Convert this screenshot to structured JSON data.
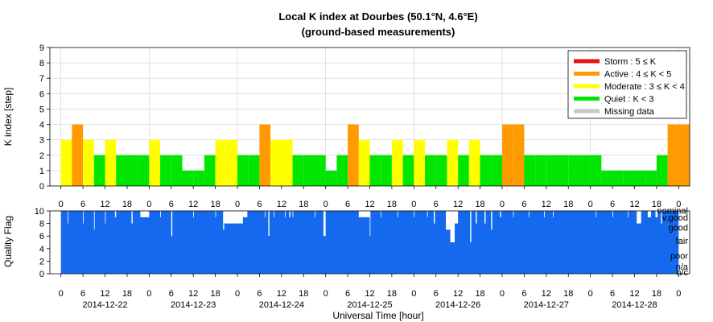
{
  "chart_data": [
    {
      "type": "bar",
      "title": "Local K index at Dourbes (50.1°N, 4.6°E)",
      "subtitle": "(ground-based measurements)",
      "ylabel": "K index [step]",
      "ylim": [
        0,
        9
      ],
      "yticks": [
        0,
        1,
        2,
        3,
        4,
        5,
        6,
        7,
        8,
        9
      ],
      "x_unit": "3-hour interval",
      "x_range": [
        -1,
        57
      ],
      "hour_ticks": [
        "0",
        "6",
        "12",
        "18",
        "0",
        "6",
        "12",
        "18",
        "0",
        "6",
        "12",
        "18",
        "0",
        "6",
        "12",
        "18",
        "0",
        "6",
        "12",
        "18",
        "0",
        "6",
        "12",
        "18",
        "0",
        "6",
        "12",
        "18",
        "0"
      ],
      "grid": true,
      "legend_position": "top-right",
      "legend": [
        {
          "label": "Storm : 5 ≤ K",
          "color": "#e81010"
        },
        {
          "label": "Active : 4 ≤ K < 5",
          "color": "#ff9a00"
        },
        {
          "label": "Moderate : 3 ≤ K < 4",
          "color": "#ffff00"
        },
        {
          "label": "Quiet : K < 3",
          "color": "#00e600"
        },
        {
          "label": "Missing data",
          "color": "#c8c8c8"
        }
      ],
      "values": [
        3,
        4,
        3,
        2,
        3,
        2,
        2,
        2,
        3,
        2,
        2,
        1,
        1,
        2,
        3,
        3,
        2,
        2,
        4,
        3,
        3,
        2,
        2,
        2,
        1,
        2,
        4,
        3,
        2,
        2,
        3,
        2,
        3,
        2,
        2,
        3,
        2,
        3,
        2,
        2,
        4,
        4,
        2,
        2,
        2,
        2,
        2,
        2,
        2,
        1,
        1,
        1,
        1,
        1,
        2,
        4,
        4
      ]
    },
    {
      "type": "bar",
      "ylabel": "Quality Flag",
      "ylim": [
        0,
        10
      ],
      "yticks": [
        0,
        2,
        4,
        6,
        8,
        10
      ],
      "xlabel": "Universal Time [hour]",
      "quality_levels": [
        "nominal",
        "v.good",
        "good",
        "fair",
        "poor",
        "n/a",
        "n/c"
      ],
      "dates": [
        "2014-12-22",
        "2014-12-23",
        "2014-12-24",
        "2014-12-25",
        "2014-12-26",
        "2014-12-27",
        "2014-12-28"
      ],
      "color": "#1469ee",
      "dips": [
        {
          "from": 0.6,
          "to": 0.65,
          "value": 8
        },
        {
          "from": 2.0,
          "to": 2.05,
          "value": 8
        },
        {
          "from": 3.0,
          "to": 3.05,
          "value": 7
        },
        {
          "from": 4.0,
          "to": 4.05,
          "value": 8
        },
        {
          "from": 4.9,
          "to": 5.0,
          "value": 9
        },
        {
          "from": 6.4,
          "to": 6.5,
          "value": 8
        },
        {
          "from": 7.2,
          "to": 8.0,
          "value": 9
        },
        {
          "from": 9.0,
          "to": 9.05,
          "value": 9
        },
        {
          "from": 10.0,
          "to": 10.1,
          "value": 6
        },
        {
          "from": 12.0,
          "to": 12.05,
          "value": 9
        },
        {
          "from": 14.0,
          "to": 14.05,
          "value": 9
        },
        {
          "from": 14.7,
          "to": 14.8,
          "value": 7
        },
        {
          "from": 14.8,
          "to": 16.5,
          "value": 8
        },
        {
          "from": 16.5,
          "to": 16.9,
          "value": 9
        },
        {
          "from": 18.5,
          "to": 18.55,
          "value": 9
        },
        {
          "from": 18.8,
          "to": 18.9,
          "value": 6
        },
        {
          "from": 19.3,
          "to": 19.35,
          "value": 9
        },
        {
          "from": 20.3,
          "to": 20.35,
          "value": 9
        },
        {
          "from": 20.7,
          "to": 20.8,
          "value": 9
        },
        {
          "from": 21.0,
          "to": 21.05,
          "value": 9
        },
        {
          "from": 23.0,
          "to": 23.05,
          "value": 9
        },
        {
          "from": 23.8,
          "to": 24.0,
          "value": 6
        },
        {
          "from": 27.0,
          "to": 28.0,
          "value": 9
        },
        {
          "from": 28.0,
          "to": 28.05,
          "value": 6
        },
        {
          "from": 29.0,
          "to": 29.05,
          "value": 9
        },
        {
          "from": 30.5,
          "to": 30.55,
          "value": 9
        },
        {
          "from": 32.0,
          "to": 32.05,
          "value": 9
        },
        {
          "from": 33.2,
          "to": 33.25,
          "value": 9
        },
        {
          "from": 33.8,
          "to": 33.9,
          "value": 8
        },
        {
          "from": 34.9,
          "to": 35.3,
          "value": 7
        },
        {
          "from": 35.3,
          "to": 35.7,
          "value": 5
        },
        {
          "from": 35.7,
          "to": 36.0,
          "value": 8
        },
        {
          "from": 37.1,
          "to": 37.2,
          "value": 5
        },
        {
          "from": 37.6,
          "to": 37.7,
          "value": 8
        },
        {
          "from": 38.4,
          "to": 38.5,
          "value": 8
        },
        {
          "from": 39.0,
          "to": 39.1,
          "value": 7
        },
        {
          "from": 39.8,
          "to": 39.9,
          "value": 9
        },
        {
          "from": 41.0,
          "to": 41.05,
          "value": 9
        },
        {
          "from": 42.4,
          "to": 42.45,
          "value": 9
        },
        {
          "from": 43.8,
          "to": 43.85,
          "value": 9
        },
        {
          "from": 44.6,
          "to": 44.65,
          "value": 9
        },
        {
          "from": 48.5,
          "to": 48.55,
          "value": 9
        },
        {
          "from": 50.0,
          "to": 50.05,
          "value": 9
        },
        {
          "from": 51.4,
          "to": 51.45,
          "value": 9
        },
        {
          "from": 52.2,
          "to": 52.6,
          "value": 8
        },
        {
          "from": 53.2,
          "to": 53.5,
          "value": 9
        },
        {
          "from": 53.9,
          "to": 54.1,
          "value": 9
        },
        {
          "from": 54.4,
          "to": 54.5,
          "value": 8
        }
      ]
    }
  ]
}
